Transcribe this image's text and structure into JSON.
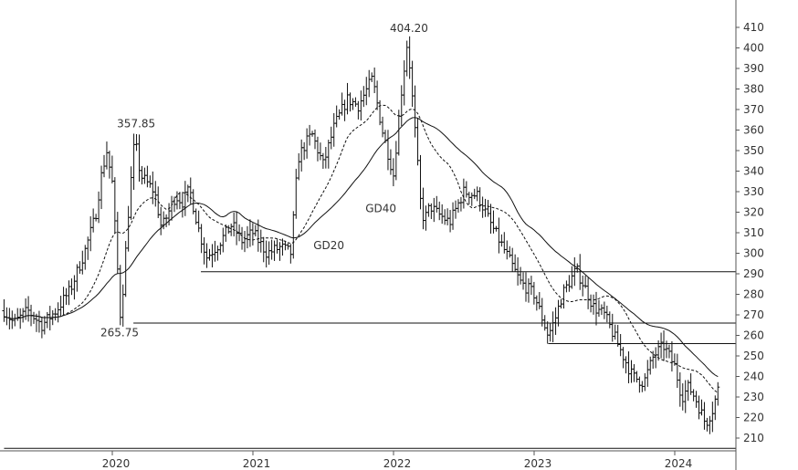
{
  "chart_data": {
    "type": "ohlc",
    "title": "",
    "xlabel": "",
    "ylabel": "",
    "ylim": [
      203,
      416
    ],
    "xlim": [
      2019.23,
      2024.42
    ],
    "y_ticks": [
      210,
      220,
      230,
      240,
      250,
      260,
      270,
      280,
      290,
      300,
      310,
      320,
      330,
      340,
      350,
      360,
      370,
      380,
      390,
      400,
      410
    ],
    "x_ticks": [
      {
        "label": "2020",
        "x": 2020.0
      },
      {
        "label": "2021",
        "x": 2021.0
      },
      {
        "label": "2022",
        "x": 2022.0
      },
      {
        "label": "2023",
        "x": 2023.0
      },
      {
        "label": "2024",
        "x": 2024.0
      }
    ],
    "grid": false,
    "colors": {
      "bars": "#111111",
      "ma": "#111111",
      "lines": "#111111",
      "axis": "#555555",
      "text": "#333333"
    },
    "price_anchors": {
      "x": [
        2019.23,
        2019.3,
        2019.4,
        2019.5,
        2019.6,
        2019.7,
        2019.8,
        2019.88,
        2019.92,
        2019.96,
        2020.0,
        2020.06,
        2020.12,
        2020.16,
        2020.2,
        2020.3,
        2020.35,
        2020.45,
        2020.5,
        2020.55,
        2020.62,
        2020.67,
        2020.75,
        2020.85,
        2020.92,
        2021.0,
        2021.1,
        2021.2,
        2021.27,
        2021.32,
        2021.37,
        2021.42,
        2021.5,
        2021.58,
        2021.67,
        2021.75,
        2021.85,
        2021.92,
        2022.0,
        2022.05,
        2022.1,
        2022.15,
        2022.2,
        2022.23,
        2022.26,
        2022.3,
        2022.4,
        2022.5,
        2022.6,
        2022.7,
        2022.8,
        2022.9,
        2023.0,
        2023.1,
        2023.15,
        2023.2,
        2023.3,
        2023.37,
        2023.42,
        2023.5,
        2023.6,
        2023.7,
        2023.78,
        2023.85,
        2023.92,
        2024.0,
        2024.05,
        2024.1,
        2024.15,
        2024.22,
        2024.27,
        2024.32
      ],
      "close": [
        272,
        266,
        272,
        265,
        272,
        282,
        300,
        318,
        337,
        350,
        334,
        267,
        325,
        356,
        338,
        330,
        312,
        328,
        325,
        331,
        310,
        298,
        304,
        314,
        306,
        310,
        300,
        303,
        300,
        346,
        353,
        358,
        343,
        362,
        375,
        372,
        385,
        360,
        338,
        375,
        404,
        362,
        318,
        318,
        323,
        320,
        315,
        330,
        328,
        313,
        300,
        286,
        280,
        260,
        268,
        280,
        292,
        282,
        274,
        270,
        255,
        240,
        237,
        250,
        255,
        245,
        230,
        235,
        229,
        217,
        224,
        237
      ]
    },
    "moving_averages": [
      {
        "name": "GD20",
        "period": 20,
        "style": "dashed"
      },
      {
        "name": "GD40",
        "period": 40,
        "style": "solid"
      }
    ],
    "horizontal_lines": [
      {
        "y": 291,
        "x_start": 2020.63
      },
      {
        "y": 266,
        "x_start": 2020.15
      },
      {
        "y": 256,
        "x_start": 2023.1
      },
      {
        "y": 205,
        "x_start": 2019.23
      }
    ],
    "annotations": [
      {
        "text": "404.20",
        "x": 2022.11,
        "y": 404.2
      },
      {
        "text": "357.85",
        "x": 2020.17,
        "y": 357.85
      },
      {
        "text": "265.75",
        "x": 2020.13,
        "y": 265.75
      },
      {
        "text": "GD40",
        "x": 2021.8,
        "y": 320
      },
      {
        "text": "GD20",
        "x": 2021.43,
        "y": 302
      }
    ]
  }
}
